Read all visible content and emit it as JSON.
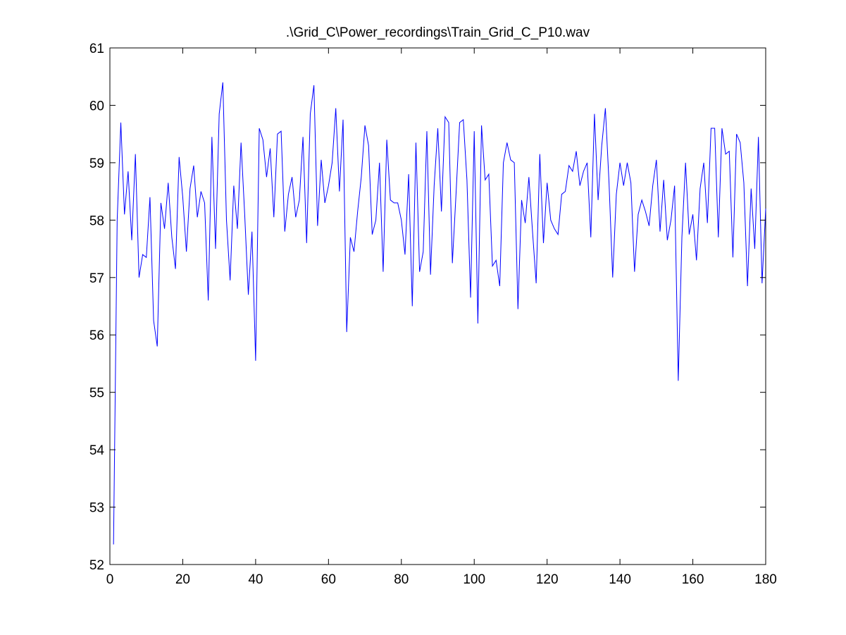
{
  "chart_data": {
    "type": "line",
    "title": ".\\Grid_C\\Power_recordings\\Train_Grid_C_P10.wav",
    "xlabel": "",
    "ylabel": "",
    "xlim": [
      0,
      180
    ],
    "ylim": [
      52,
      61
    ],
    "xticks": [
      0,
      20,
      40,
      60,
      80,
      100,
      120,
      140,
      160,
      180
    ],
    "yticks": [
      52,
      53,
      54,
      55,
      56,
      57,
      58,
      59,
      60,
      61
    ],
    "grid": false,
    "line_color": "#0000ff",
    "x": [
      1,
      2,
      3,
      4,
      5,
      6,
      7,
      8,
      9,
      10,
      11,
      12,
      13,
      14,
      15,
      16,
      17,
      18,
      19,
      20,
      21,
      22,
      23,
      24,
      25,
      26,
      27,
      28,
      29,
      30,
      31,
      32,
      33,
      34,
      35,
      36,
      37,
      38,
      39,
      40,
      41,
      42,
      43,
      44,
      45,
      46,
      47,
      48,
      49,
      50,
      51,
      52,
      53,
      54,
      55,
      56,
      57,
      58,
      59,
      60,
      61,
      62,
      63,
      64,
      65,
      66,
      67,
      68,
      69,
      70,
      71,
      72,
      73,
      74,
      75,
      76,
      77,
      78,
      79,
      80,
      81,
      82,
      83,
      84,
      85,
      86,
      87,
      88,
      89,
      90,
      91,
      92,
      93,
      94,
      95,
      96,
      97,
      98,
      99,
      100,
      101,
      102,
      103,
      104,
      105,
      106,
      107,
      108,
      109,
      110,
      111,
      112,
      113,
      114,
      115,
      116,
      117,
      118,
      119,
      120,
      121,
      122,
      123,
      124,
      125,
      126,
      127,
      128,
      129,
      130,
      131,
      132,
      133,
      134,
      135,
      136,
      137,
      138,
      139,
      140,
      141,
      142,
      143,
      144,
      145,
      146,
      147,
      148,
      149,
      150,
      151,
      152,
      153,
      154,
      155,
      156,
      157,
      158,
      159,
      160,
      161,
      162,
      163,
      164,
      165,
      166,
      167,
      168,
      169,
      170,
      171,
      172,
      173,
      174,
      175,
      176,
      177,
      178,
      179,
      180
    ],
    "y": [
      52.35,
      58.0,
      59.7,
      58.1,
      58.85,
      57.65,
      59.15,
      57.0,
      57.4,
      57.35,
      58.4,
      56.25,
      55.8,
      58.3,
      57.85,
      58.65,
      57.7,
      57.15,
      59.1,
      58.4,
      57.45,
      58.55,
      58.95,
      58.05,
      58.5,
      58.3,
      56.6,
      59.45,
      57.5,
      59.85,
      60.4,
      58.0,
      56.95,
      58.6,
      57.85,
      59.35,
      58.1,
      56.7,
      57.8,
      55.55,
      59.6,
      59.4,
      58.75,
      59.25,
      58.05,
      59.5,
      59.55,
      57.8,
      58.45,
      58.75,
      58.05,
      58.35,
      59.45,
      57.6,
      59.85,
      60.35,
      57.9,
      59.05,
      58.3,
      58.6,
      59.0,
      59.95,
      58.5,
      59.75,
      56.05,
      57.7,
      57.45,
      58.15,
      58.75,
      59.65,
      59.3,
      57.75,
      58.0,
      59.0,
      57.1,
      59.4,
      58.35,
      58.3,
      58.3,
      58.0,
      57.4,
      58.8,
      56.5,
      59.35,
      57.1,
      57.45,
      59.55,
      57.05,
      58.6,
      59.6,
      58.15,
      59.8,
      59.7,
      57.25,
      58.45,
      59.7,
      59.75,
      58.7,
      56.65,
      59.55,
      56.2,
      59.65,
      58.7,
      58.8,
      57.2,
      57.3,
      56.85,
      59.0,
      59.35,
      59.05,
      59.0,
      56.45,
      58.35,
      57.95,
      58.75,
      57.8,
      56.9,
      59.15,
      57.6,
      58.65,
      58.0,
      57.85,
      57.75,
      58.45,
      58.5,
      58.95,
      58.85,
      59.2,
      58.6,
      58.85,
      59.0,
      57.7,
      59.85,
      58.35,
      59.3,
      59.95,
      58.65,
      57.0,
      58.45,
      59.0,
      58.6,
      59.0,
      58.65,
      57.1,
      58.1,
      58.35,
      58.15,
      57.9,
      58.6,
      59.05,
      57.8,
      58.7,
      57.65,
      58.0,
      58.6,
      55.2,
      57.7,
      59.0,
      57.75,
      58.1,
      57.3,
      58.55,
      59.0,
      57.95,
      59.6,
      59.6,
      57.7,
      59.6,
      59.15,
      59.2,
      57.35,
      59.5,
      59.35,
      58.65,
      56.85,
      58.55,
      57.5,
      59.45,
      56.9,
      58.2
    ]
  }
}
